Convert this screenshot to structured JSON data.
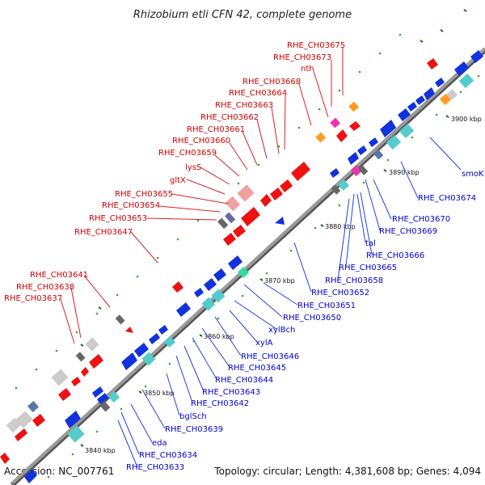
{
  "title": "Rhizobium etli CFN 42, complete genome",
  "footer": {
    "accession": "Accession: NC_007761",
    "summary": "Topology: circular; Length: 4,381,608 bp; Genes: 4,094"
  },
  "colors": {
    "forward": "#ee1111",
    "reverse": "#1133dd",
    "backbone": "#888888",
    "dot": "#229922",
    "red_label": "#cc0000",
    "blue_label": "#0000cc"
  },
  "ticks": [
    "3840 kbp",
    "3850 kbp",
    "3860 kbp",
    "3870 kbp",
    "3880 kbp",
    "3890 kbp",
    "3900 kbp"
  ],
  "red_labels": [
    "RHE_CH03675",
    "RHE_CH03673",
    "nth",
    "RHE_CH03668",
    "RHE_CH03664",
    "RHE_CH03663",
    "RHE_CH03662",
    "RHE_CH03661",
    "RHE_CH03660",
    "RHE_CH03659",
    "lysS",
    "gltX",
    "RHE_CH03655",
    "RHE_CH03654",
    "RHE_CH03653",
    "RHE_CH03647",
    "RHE_CH03641",
    "RHE_CH03638",
    "RHE_CH03637"
  ],
  "blue_labels": [
    "smoK",
    "RHE_CH03674",
    "RHE_CH03670",
    "RHE_CH03669",
    "RHE_CH03666",
    "tal",
    "RHE_CH03665",
    "RHE_CH03658",
    "RHE_CH03652",
    "RHE_CH03651",
    "RHE_CH03650",
    "xylBch",
    "xylA",
    "RHE_CH03646",
    "RHE_CH03645",
    "RHE_CH03644",
    "RHE_CH03643",
    "RHE_CH03642",
    "bglSch",
    "RHE_CH03639",
    "eda",
    "RHE_CH03634",
    "RHE_CH03633"
  ]
}
